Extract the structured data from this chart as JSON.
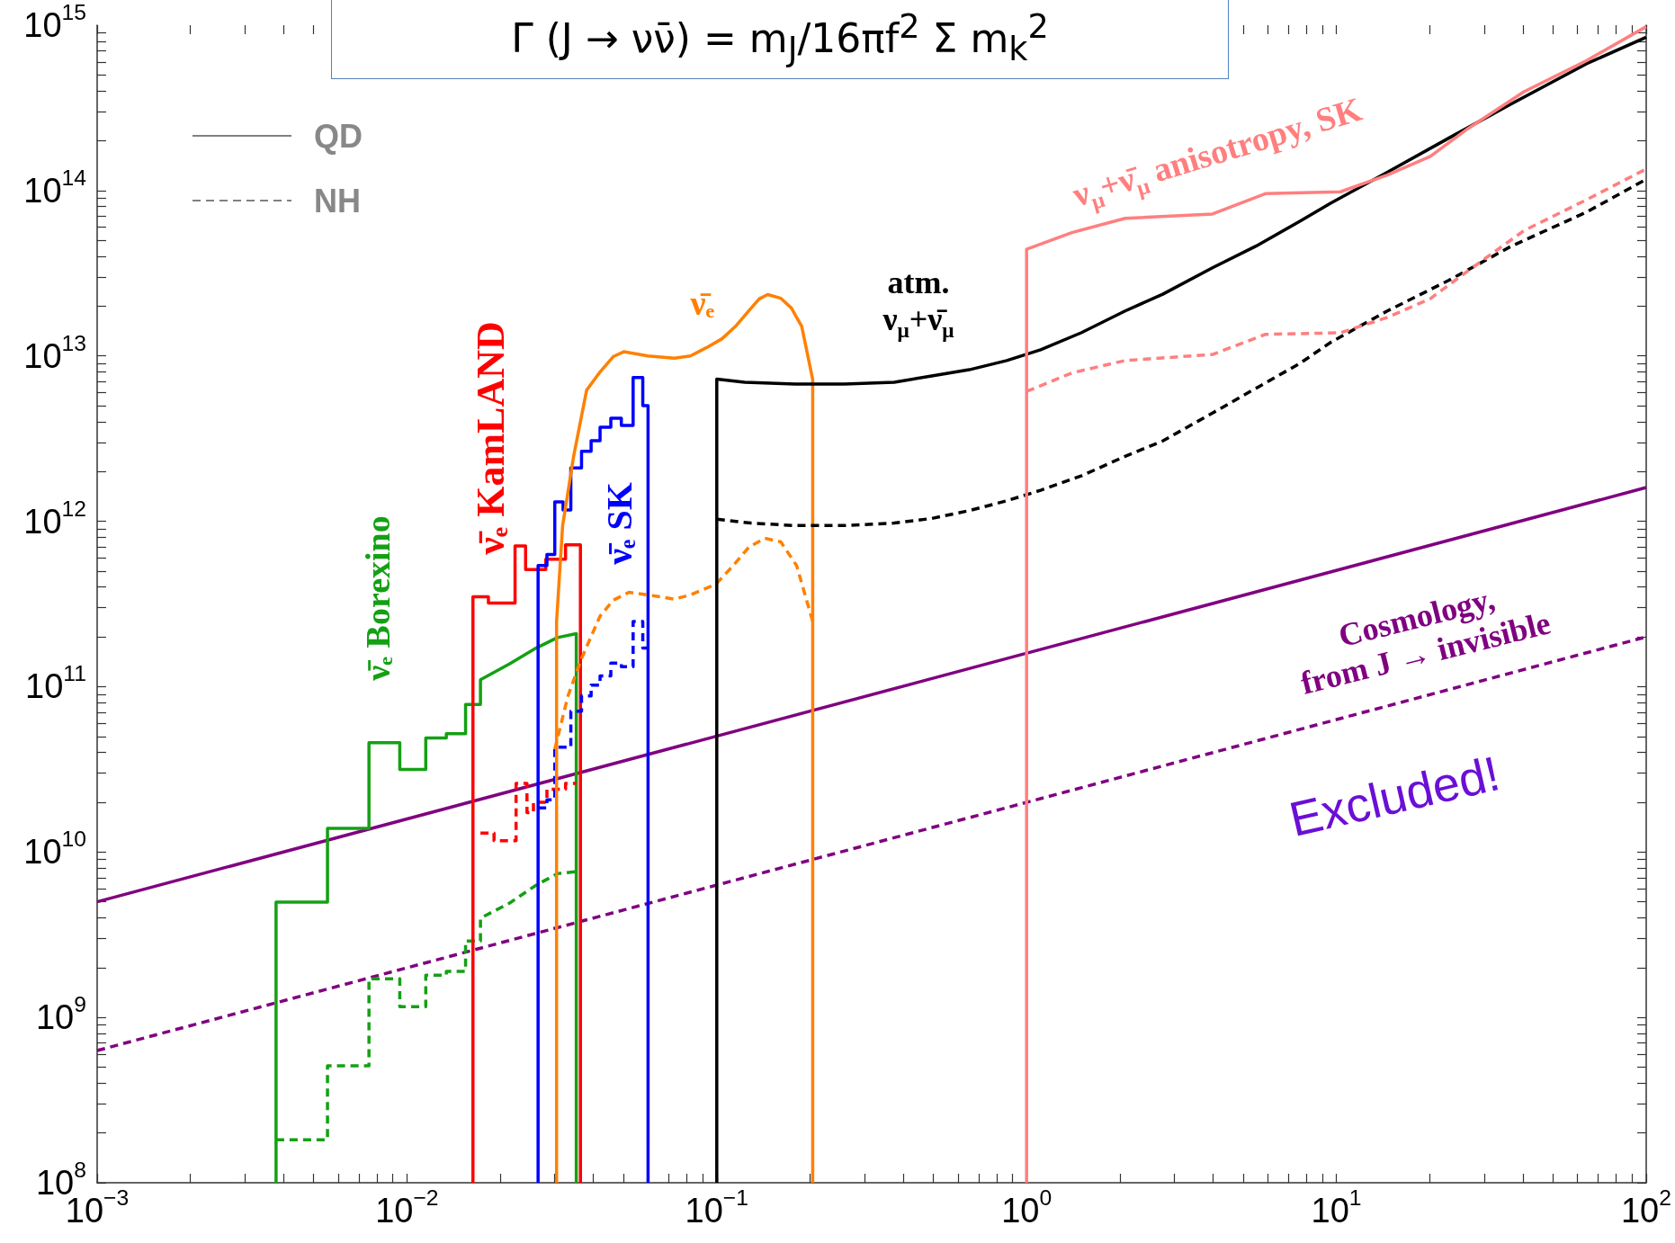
{
  "chart_data": {
    "type": "line",
    "log": "xy",
    "marker": "none",
    "legend": "top left",
    "xlim": [
      0.001,
      100
    ],
    "ylim": [
      100000000,
      1000000000000000
    ],
    "xticks": [
      {
        "value": 0.001,
        "label": "10$^{−3}$"
      },
      {
        "value": 0.002,
        "label": null
      },
      {
        "value": 0.003,
        "label": null
      },
      {
        "value": 0.004,
        "label": null
      },
      {
        "value": 0.005,
        "label": null
      },
      {
        "value": 0.006,
        "label": null
      },
      {
        "value": 0.007,
        "label": null
      },
      {
        "value": 0.008,
        "label": null
      },
      {
        "value": 0.009,
        "label": null
      },
      {
        "value": 0.01,
        "label": "10$^{−2}$"
      },
      {
        "value": 0.02,
        "label": null
      },
      {
        "value": 0.03,
        "label": null
      },
      {
        "value": 0.04,
        "label": null
      },
      {
        "value": 0.05,
        "label": null
      },
      {
        "value": 0.06,
        "label": null
      },
      {
        "value": 0.07,
        "label": null
      },
      {
        "value": 0.08,
        "label": null
      },
      {
        "value": 0.09,
        "label": null
      },
      {
        "value": 0.1,
        "label": "10$^{−1}$"
      },
      {
        "value": 0.2,
        "label": null
      },
      {
        "value": 0.3,
        "label": null
      },
      {
        "value": 0.4,
        "label": null
      },
      {
        "value": 0.5,
        "label": null
      },
      {
        "value": 0.6,
        "label": null
      },
      {
        "value": 0.7,
        "label": null
      },
      {
        "value": 0.8,
        "label": null
      },
      {
        "value": 0.9,
        "label": null
      },
      {
        "value": 1,
        "label": "10$^{0}$"
      },
      {
        "value": 2,
        "label": null
      },
      {
        "value": 3,
        "label": null
      },
      {
        "value": 4,
        "label": null
      },
      {
        "value": 5,
        "label": null
      },
      {
        "value": 6,
        "label": null
      },
      {
        "value": 7,
        "label": null
      },
      {
        "value": 8,
        "label": null
      },
      {
        "value": 9,
        "label": null
      },
      {
        "value": 10,
        "label": "10$^{1}$"
      },
      {
        "value": 20,
        "label": null
      },
      {
        "value": 30,
        "label": null
      },
      {
        "value": 40,
        "label": null
      },
      {
        "value": 50,
        "label": null
      },
      {
        "value": 60,
        "label": null
      },
      {
        "value": 70,
        "label": null
      },
      {
        "value": 80,
        "label": null
      },
      {
        "value": 90,
        "label": null
      },
      {
        "value": 100,
        "label": "10$^{2}$"
      }
    ],
    "yticks": [
      {
        "value": 100000000,
        "label": "10$^{8}$"
      },
      {
        "value": 200000000,
        "label": null
      },
      {
        "value": 300000000,
        "label": null
      },
      {
        "value": 400000000,
        "label": null
      },
      {
        "value": 500000000,
        "label": null
      },
      {
        "value": 600000000,
        "label": null
      },
      {
        "value": 700000000,
        "label": null
      },
      {
        "value": 800000000,
        "label": null
      },
      {
        "value": 900000000,
        "label": null
      },
      {
        "value": 1000000000,
        "label": "10$^{9}$"
      },
      {
        "value": 2000000000,
        "label": null
      },
      {
        "value": 3000000000,
        "label": null
      },
      {
        "value": 4000000000,
        "label": null
      },
      {
        "value": 5000000000,
        "label": null
      },
      {
        "value": 6000000000,
        "label": null
      },
      {
        "value": 7000000000,
        "label": null
      },
      {
        "value": 8000000000,
        "label": null
      },
      {
        "value": 9000000000,
        "label": null
      },
      {
        "value": 10000000000,
        "label": "10$^{10}$"
      },
      {
        "value": 20000000000,
        "label": null
      },
      {
        "value": 30000000000,
        "label": null
      },
      {
        "value": 40000000000,
        "label": null
      },
      {
        "value": 50000000000,
        "label": null
      },
      {
        "value": 60000000000,
        "label": null
      },
      {
        "value": 70000000000,
        "label": null
      },
      {
        "value": 80000000000,
        "label": null
      },
      {
        "value": 90000000000,
        "label": null
      },
      {
        "value": 100000000000,
        "label": "10$^{11}$"
      },
      {
        "value": 200000000000,
        "label": null
      },
      {
        "value": 300000000000,
        "label": null
      },
      {
        "value": 400000000000,
        "label": null
      },
      {
        "value": 500000000000,
        "label": null
      },
      {
        "value": 600000000000,
        "label": null
      },
      {
        "value": 700000000000,
        "label": null
      },
      {
        "value": 800000000000,
        "label": null
      },
      {
        "value": 900000000000,
        "label": null
      },
      {
        "value": 1000000000000,
        "label": "10$^{12}$"
      },
      {
        "value": 2000000000000,
        "label": null
      },
      {
        "value": 3000000000000,
        "label": null
      },
      {
        "value": 4000000000000,
        "label": null
      },
      {
        "value": 5000000000000,
        "label": null
      },
      {
        "value": 6000000000000,
        "label": null
      },
      {
        "value": 7000000000000,
        "label": null
      },
      {
        "value": 8000000000000,
        "label": null
      },
      {
        "value": 9000000000000,
        "label": null
      },
      {
        "value": 10000000000000,
        "label": "10$^{13}$"
      },
      {
        "value": 20000000000000,
        "label": null
      },
      {
        "value": 30000000000000,
        "label": null
      },
      {
        "value": 40000000000000,
        "label": null
      },
      {
        "value": 50000000000000,
        "label": null
      },
      {
        "value": 60000000000000,
        "label": null
      },
      {
        "value": 70000000000000,
        "label": null
      },
      {
        "value": 80000000000000,
        "label": null
      },
      {
        "value": 90000000000000,
        "label": null
      },
      {
        "value": 100000000000000,
        "label": "10$^{14}$"
      },
      {
        "value": 200000000000000,
        "label": null
      },
      {
        "value": 300000000000000,
        "label": null
      },
      {
        "value": 400000000000000,
        "label": null
      },
      {
        "value": 500000000000000,
        "label": null
      },
      {
        "value": 600000000000000,
        "label": null
      },
      {
        "value": 700000000000000,
        "label": null
      },
      {
        "value": 800000000000000,
        "label": null
      },
      {
        "value": 900000000000000,
        "label": null
      },
      {
        "value": 1000000000000000,
        "label": "10$^{15}$"
      }
    ],
    "series": [
      {
        "color": "#800080",
        "line_style": "solid",
        "x": [
          0.001,
          100
        ],
        "values": [
          5000000000.0,
          1600000000000.0
        ]
      },
      {
        "color": "#800080",
        "line_style": "dashed",
        "x": [
          0.001,
          100
        ],
        "values": [
          630000000.0,
          200000000000.0
        ]
      },
      {
        "color": "#14a014",
        "line_style": "solid",
        "x": [
          0.00378,
          0.00378,
          0.00554,
          0.00554,
          0.00754,
          0.00754,
          0.00948,
          0.00948,
          0.0115,
          0.0115,
          0.0134,
          0.0134,
          0.01546,
          0.01546,
          0.01727,
          0.01727,
          0.0214,
          0.0261,
          0.0306,
          0.0352,
          0.0352
        ],
        "values": [
          100000000.0,
          4970000000.0,
          4970000000.0,
          13900000000.0,
          13900000000.0,
          45800000000.0,
          45800000000.0,
          31600000000.0,
          31600000000.0,
          49000000000.0,
          49000000000.0,
          52000000000.0,
          52000000000.0,
          78000000000.0,
          78000000000.0,
          110000000000.0,
          137000000000.0,
          171000000000.0,
          198000000000.0,
          209000000000.0,
          100000000.0
        ]
      },
      {
        "color": "#14a014",
        "line_style": "dashed",
        "x": [
          0.00378,
          0.00554,
          0.00554,
          0.00754,
          0.00754,
          0.00948,
          0.00948,
          0.0115,
          0.0115,
          0.0134,
          0.0134,
          0.01546,
          0.01546,
          0.01727,
          0.01727,
          0.0214,
          0.0261,
          0.0306,
          0.0352
        ],
        "values": [
          182000000.0,
          182000000.0,
          510000000.0,
          510000000.0,
          1710000000.0,
          1710000000.0,
          1160000000.0,
          1160000000.0,
          1800000000.0,
          1800000000.0,
          1900000000.0,
          1900000000.0,
          2900000000.0,
          2900000000.0,
          3980000000.0,
          4900000000.0,
          6300000000.0,
          7400000000.0,
          7600000000.0
        ]
      },
      {
        "color": "#ff0000",
        "line_style": "solid",
        "x": [
          0.01633,
          0.01633,
          0.01832,
          0.01832,
          0.02233,
          0.02233,
          0.02415,
          0.02415,
          0.02806,
          0.02806,
          0.0325,
          0.0325,
          0.0363,
          0.0363
        ],
        "values": [
          100000000.0,
          350000000000.0,
          350000000000.0,
          320000000000.0,
          320000000000.0,
          710000000000.0,
          710000000000.0,
          510000000000.0,
          510000000000.0,
          590000000000.0,
          590000000000.0,
          720000000000.0,
          720000000000.0,
          100000000.0
        ]
      },
      {
        "color": "#ff0000",
        "line_style": "dashed",
        "x": [
          0.01727,
          0.0191,
          0.0191,
          0.0225,
          0.0225,
          0.0244,
          0.0244,
          0.0256,
          0.0256,
          0.0283,
          0.0283,
          0.0325,
          0.0325,
          0.0352
        ],
        "values": [
          13000000000.0,
          13000000000.0,
          11700000000.0,
          11700000000.0,
          26000000000.0,
          26000000000.0,
          17300000000.0,
          17300000000.0,
          20000000000.0,
          20000000000.0,
          24000000000.0,
          24000000000.0,
          26000000000.0,
          26000000000.0
        ]
      },
      {
        "color": "#0000ff",
        "line_style": "solid",
        "x": [
          0.0265,
          0.0265,
          0.0283,
          0.0283,
          0.03,
          0.03,
          0.0319,
          0.0319,
          0.0338,
          0.0338,
          0.0366,
          0.0366,
          0.0393,
          0.0393,
          0.042,
          0.042,
          0.0455,
          0.0455,
          0.0492,
          0.0492,
          0.0537,
          0.0537,
          0.0577,
          0.0577,
          0.06,
          0.06
        ],
        "values": [
          100000000.0,
          540000000000.0,
          540000000000.0,
          630000000000.0,
          630000000000.0,
          1310000000000.0,
          1310000000000.0,
          1170000000000.0,
          1170000000000.0,
          2100000000000.0,
          2100000000000.0,
          2650000000000.0,
          2650000000000.0,
          3070000000000.0,
          3070000000000.0,
          3700000000000.0,
          3700000000000.0,
          4200000000000.0,
          4200000000000.0,
          3800000000000.0,
          3800000000000.0,
          7400000000000.0,
          7400000000000.0,
          5000000000000.0,
          5000000000000.0,
          100000000.0
        ]
      },
      {
        "color": "#0000ff",
        "line_style": "dashed",
        "x": [
          0.0265,
          0.0283,
          0.0283,
          0.03,
          0.03,
          0.0338,
          0.0338,
          0.0366,
          0.0366,
          0.0393,
          0.0393,
          0.042,
          0.042,
          0.0455,
          0.0455,
          0.0492,
          0.0492,
          0.0537,
          0.0537,
          0.0577,
          0.0577,
          0.06
        ],
        "values": [
          18500000000.0,
          18500000000.0,
          20700000000.0,
          20700000000.0,
          43000000000.0,
          43000000000.0,
          71000000000.0,
          71000000000.0,
          88000000000.0,
          88000000000.0,
          102000000000.0,
          102000000000.0,
          116000000000.0,
          116000000000.0,
          139000000000.0,
          139000000000.0,
          132000000000.0,
          132000000000.0,
          248000000000.0,
          248000000000.0,
          171000000000.0,
          171000000000.0
        ]
      },
      {
        "color": "#ff8000",
        "line_style": "solid",
        "x": [
          0.0304,
          0.0304,
          0.0318,
          0.0345,
          0.038,
          0.042,
          0.0463,
          0.0501,
          0.0599,
          0.0729,
          0.0822,
          0.0925,
          0.104,
          0.115,
          0.127,
          0.137,
          0.146,
          0.161,
          0.174,
          0.188,
          0.204,
          0.204
        ],
        "values": [
          100000000.0,
          248000000000.0,
          940000000000.0,
          2460000000000.0,
          6200000000000.0,
          8000000000000.0,
          9900000000000.0,
          10600000000000.0,
          10000000000000.0,
          9700000000000.0,
          10000000000000.0,
          11200000000000.0,
          12700000000000.0,
          15100000000000.0,
          18800000000000.0,
          22100000000000.0,
          23500000000000.0,
          22300000000000.0,
          19500000000000.0,
          15100000000000.0,
          7200000000000.0,
          100000000.0
        ]
      },
      {
        "color": "#ff8000",
        "line_style": "dashed",
        "x": [
          0.03,
          0.0331,
          0.0366,
          0.042,
          0.0463,
          0.0521,
          0.0599,
          0.0729,
          0.0822,
          0.0993,
          0.113,
          0.127,
          0.143,
          0.161,
          0.181,
          0.204
        ],
        "values": [
          41900000000.0,
          88000000000.0,
          148000000000.0,
          267000000000.0,
          333000000000.0,
          372000000000.0,
          359000000000.0,
          338000000000.0,
          359000000000.0,
          416000000000.0,
          540000000000.0,
          698000000000.0,
          790000000000.0,
          750000000000.0,
          540000000000.0,
          248000000000.0
        ]
      },
      {
        "color": "#000000",
        "line_style": "solid",
        "x": [
          0.1,
          0.1,
          0.123,
          0.179,
          0.258,
          0.374,
          0.494,
          0.653,
          0.863,
          1.11,
          1.5,
          2.08,
          2.75,
          3.98,
          5.5,
          7.6,
          9.6,
          14.6,
          23.1,
          36.7,
          64.1,
          100
        ],
        "values": [
          100000000.0,
          7240000000000.0,
          6930000000000.0,
          6760000000000.0,
          6760000000000.0,
          6930000000000.0,
          7570000000000.0,
          8250000000000.0,
          9380000000000.0,
          10900000000000.0,
          13800000000000.0,
          18700000000000.0,
          23600000000000.0,
          34100000000000.0,
          46100000000000.0,
          65000000000000.0,
          84000000000000.0,
          129000000000000.0,
          208000000000000.0,
          334000000000000.0,
          584000000000000.0,
          845000000000000.0
        ]
      },
      {
        "color": "#000000",
        "line_style": "dashed",
        "x": [
          0.1,
          0.129,
          0.179,
          0.258,
          0.374,
          0.494,
          0.653,
          0.863,
          1.11,
          1.5,
          2.08,
          2.75,
          3.98,
          5.5,
          7.6,
          9.6,
          14.6,
          23.1,
          36.7,
          64.1,
          100
        ],
        "values": [
          1030000000000.0,
          975000000000.0,
          942000000000.0,
          942000000000.0,
          975000000000.0,
          1040000000000.0,
          1160000000000.0,
          1330000000000.0,
          1540000000000.0,
          1880000000000.0,
          2470000000000.0,
          3060000000000.0,
          4510000000000.0,
          6370000000000.0,
          8980000000000.0,
          12100000000000.0,
          18700000000000.0,
          28700000000000.0,
          46100000000000.0,
          74000000000000.0,
          117000000000000.0
        ]
      },
      {
        "color": "#ff7f7f",
        "line_style": "solid",
        "x": [
          1,
          1,
          1.4,
          2.08,
          3.98,
          5.9,
          10.3,
          14.6,
          20.1,
          26.6,
          40.3,
          64.1,
          100
        ],
        "values": [
          100000000.0,
          44200000000000.0,
          55700000000000.0,
          67900000000000.0,
          72100000000000.0,
          95800000000000.0,
          98300000000000.0,
          124000000000000.0,
          161000000000000.0,
          237000000000000.0,
          396000000000000.0,
          610000000000000.0,
          980000000000000.0
        ]
      },
      {
        "color": "#ff7f7f",
        "line_style": "dashed",
        "x": [
          1,
          1.4,
          2.08,
          3.98,
          5.9,
          10.3,
          14.6,
          20.1,
          26.6,
          40.3,
          64.1,
          100
        ],
        "values": [
          6100000000000.0,
          7890000000000.0,
          9380000000000.0,
          10200000000000.0,
          13500000000000.0,
          13800000000000.0,
          17100000000000.0,
          22200000000000.0,
          32700000000000.0,
          57200000000000.0,
          87900000000000.0,
          135000000000000.0
        ]
      },
      {
        "name": "QD",
        "color": "#808080",
        "line_style": "solid"
      },
      {
        "name": "NH",
        "color": "#808080",
        "line_style": "dashed"
      }
    ],
    "annotations": [
      "ν̄ₑ Borexino",
      "ν̄ₑ KamLAND",
      "ν̄ₑ SK",
      "ν̄ₑ",
      "atm.\nν$_{μ}$+ν̄$_{μ}$",
      "ν$_{μ}$+ν̄$_{μ}$ anisotropy, SK",
      "Cosmology,\nfrom J → invisible",
      "Excluded!",
      "Γ (J → νν̄) = m$_{J}$/16πf$^{2}$ Σ m$_{k}$$^{2}$"
    ]
  }
}
